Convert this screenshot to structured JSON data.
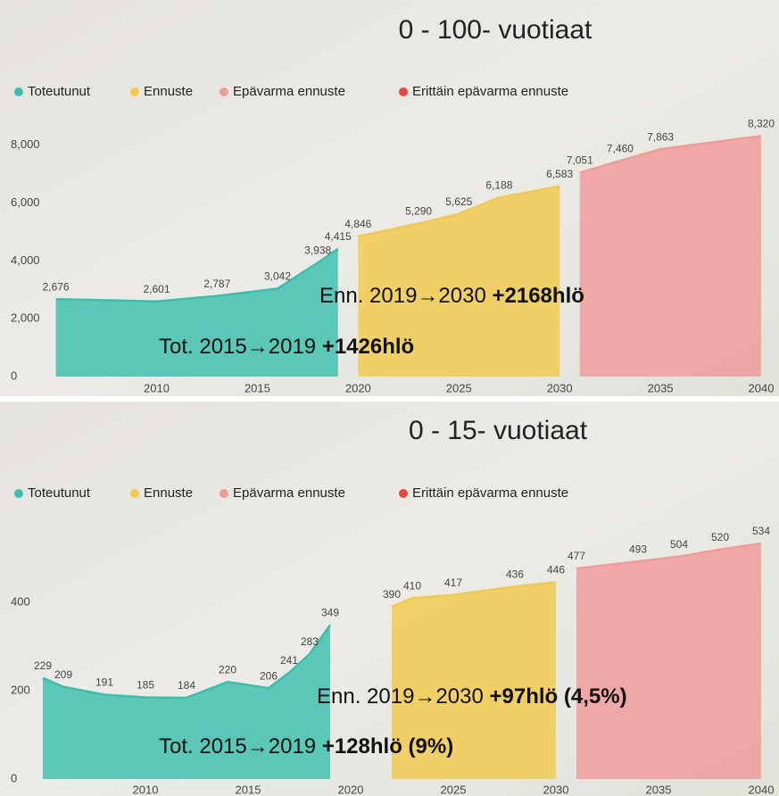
{
  "chart_data": [
    {
      "type": "area",
      "title": "0 - 100- vuotiaat",
      "xlim": [
        2004,
        2040
      ],
      "xticks": [
        2010,
        2015,
        2020,
        2025,
        2030,
        2035,
        2040
      ],
      "ylim": [
        0,
        8700
      ],
      "yticks": [
        0,
        {
          "value": 2000,
          "label": "2,000"
        },
        {
          "value": 4000,
          "label": "4,000"
        },
        {
          "value": 6000,
          "label": "6,000"
        },
        {
          "value": 8000,
          "label": "8,000"
        }
      ],
      "series": [
        {
          "name": "Toteutunut",
          "color": "#3bbfad",
          "x": [
            2005,
            2010,
            2013,
            2016,
            2018,
            2019
          ],
          "values": [
            2676,
            2601,
            2787,
            3042,
            3938,
            4415
          ],
          "value_labels": [
            "2,676",
            "2,601",
            "2,787",
            "3,042",
            "3,938",
            "4,415"
          ]
        },
        {
          "name": "Ennuste",
          "color": "#f2c94c",
          "x": [
            2020,
            2023,
            2025,
            2027,
            2030
          ],
          "values": [
            4846,
            5290,
            5625,
            6188,
            6583
          ],
          "value_labels": [
            "4,846",
            "5,290",
            "5,625",
            "6,188",
            "6,583"
          ]
        },
        {
          "name": "Epävarma ennuste",
          "color": "#f29a9a",
          "x": [
            2031,
            2033,
            2035,
            2040
          ],
          "values": [
            7051,
            7460,
            7863,
            8320
          ],
          "value_labels": [
            "7,051",
            "7,460",
            "7,863",
            "8,320"
          ]
        },
        {
          "name": "Erittäin epävarma ennuste",
          "color": "#e8453c",
          "x": [],
          "values": []
        }
      ],
      "annotations": [
        {
          "parts": [
            {
              "text": "Enn. 2019→2030 ",
              "bold": false
            },
            {
              "text": "+2168hlö",
              "bold": true
            }
          ]
        },
        {
          "parts": [
            {
              "text": "Tot. 2015→2019 ",
              "bold": false
            },
            {
              "text": "+1426hlö",
              "bold": true
            }
          ]
        }
      ]
    },
    {
      "type": "area",
      "title": "0 - 15- vuotiaat",
      "xlim": [
        2004,
        2040
      ],
      "xticks": [
        2010,
        2015,
        2020,
        2025,
        2030,
        2035,
        2040
      ],
      "ylim": [
        0,
        570
      ],
      "yticks": [
        0,
        200,
        400
      ],
      "series": [
        {
          "name": "Toteutunut",
          "color": "#3bbfad",
          "x": [
            2005,
            2006,
            2008,
            2010,
            2012,
            2014,
            2016,
            2017,
            2018,
            2019
          ],
          "values": [
            229,
            209,
            191,
            185,
            184,
            220,
            206,
            241,
            283,
            349
          ]
        },
        {
          "name": "Ennuste",
          "color": "#f2c94c",
          "x": [
            2022,
            2023,
            2025,
            2028,
            2030
          ],
          "values": [
            390,
            410,
            417,
            436,
            446
          ]
        },
        {
          "name": "Epävarma ennuste",
          "color": "#f29a9a",
          "x": [
            2031,
            2034,
            2036,
            2038,
            2040
          ],
          "values": [
            477,
            493,
            504,
            520,
            534
          ]
        },
        {
          "name": "Erittäin epävarma ennuste",
          "color": "#e8453c",
          "x": [],
          "values": []
        }
      ],
      "annotations": [
        {
          "parts": [
            {
              "text": "Enn. 2019→2030 ",
              "bold": false
            },
            {
              "text": "+97hlö (4,5%)",
              "bold": true
            }
          ]
        },
        {
          "parts": [
            {
              "text": "Tot. 2015→2019 ",
              "bold": false
            },
            {
              "text": "+128hlö (9%)",
              "bold": true
            }
          ]
        }
      ]
    }
  ]
}
